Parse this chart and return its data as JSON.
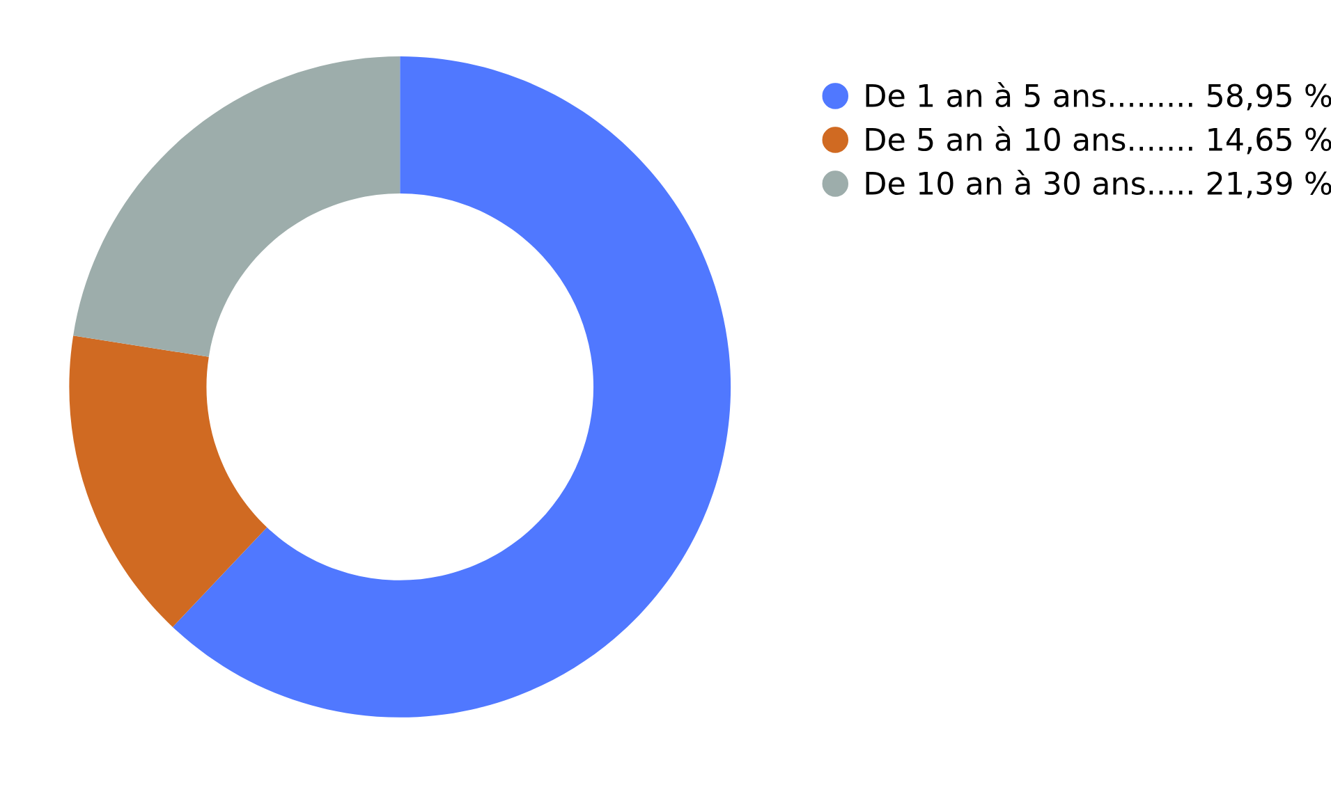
{
  "chart_data": {
    "type": "donut",
    "categories": [
      "De 1 an à 5 ans......... 58,95 %",
      "De 5 an à 10 ans....... 14,65 %",
      "De 10 an à 30 ans..... 21,39 %"
    ],
    "values": [
      58.95,
      14.65,
      21.39
    ],
    "colors": [
      "#5078ff",
      "#d06a22",
      "#9dadab"
    ],
    "legend": "top right"
  }
}
